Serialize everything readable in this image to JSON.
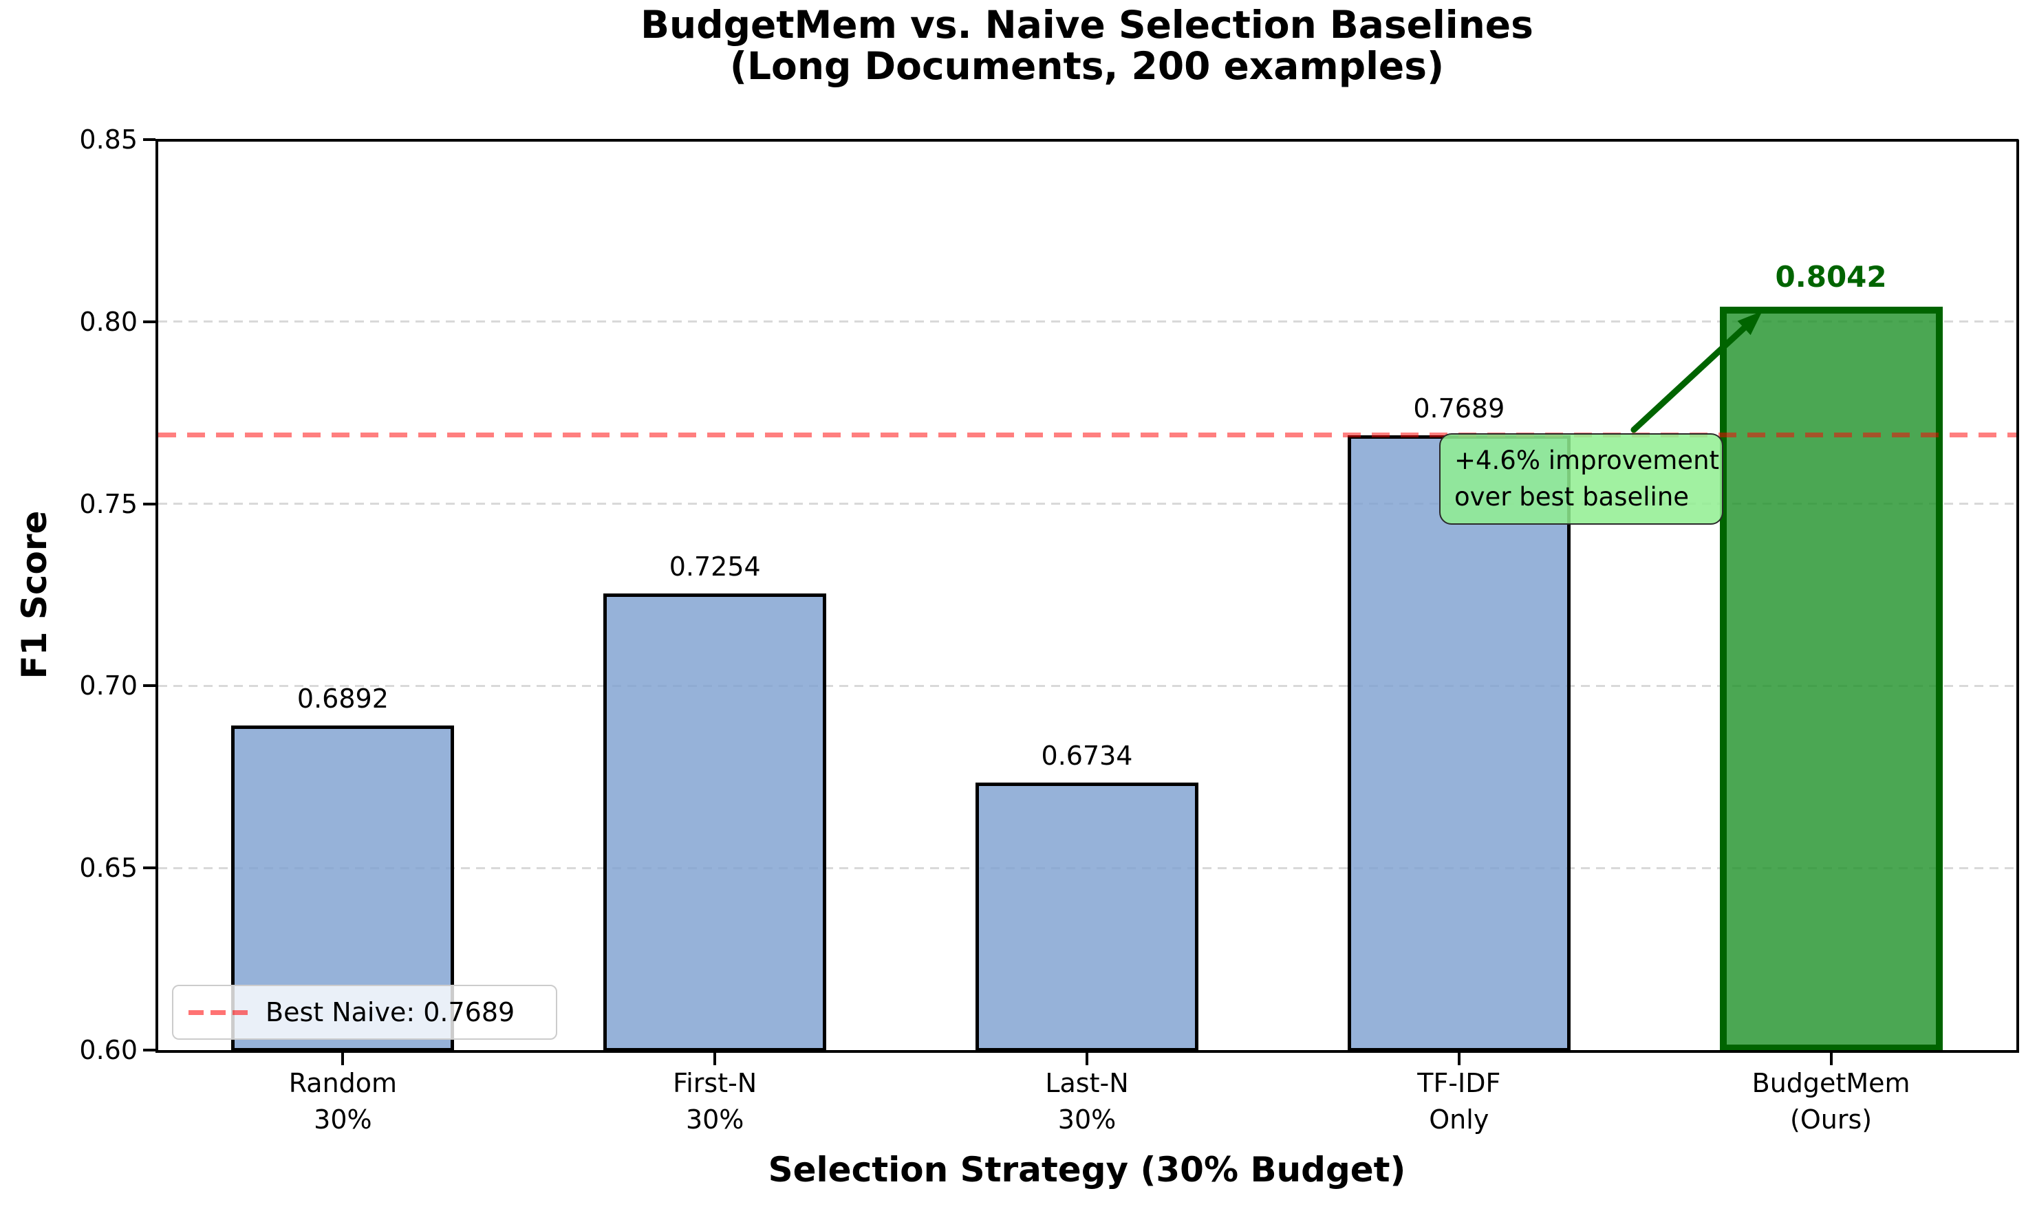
{
  "figure": {
    "title_line1": "BudgetMem vs. Naive Selection Baselines",
    "title_line2": "(Long Documents, 200 examples)"
  },
  "chart_data": {
    "type": "bar",
    "title": "BudgetMem vs. Naive Selection Baselines (Long Documents, 200 examples)",
    "xlabel": "Selection Strategy (30% Budget)",
    "ylabel": "F1 Score",
    "ylim": [
      0.6,
      0.85
    ],
    "yticks": [
      {
        "value": 0.6,
        "label": "0.60"
      },
      {
        "value": 0.65,
        "label": "0.65"
      },
      {
        "value": 0.7,
        "label": "0.70"
      },
      {
        "value": 0.75,
        "label": "0.75"
      },
      {
        "value": 0.8,
        "label": "0.80"
      },
      {
        "value": 0.85,
        "label": "0.85"
      }
    ],
    "grid": {
      "axis": "y",
      "style": "dashed",
      "color": "#d9d9d9"
    },
    "categories": [
      {
        "line1": "Random",
        "line2": "30%"
      },
      {
        "line1": "First-N",
        "line2": "30%"
      },
      {
        "line1": "Last-N",
        "line2": "30%"
      },
      {
        "line1": "TF-IDF",
        "line2": "Only"
      },
      {
        "line1": "BudgetMem",
        "line2": "(Ours)"
      }
    ],
    "values": [
      0.6892,
      0.7254,
      0.6734,
      0.7689,
      0.8042
    ],
    "value_labels": [
      "0.6892",
      "0.7254",
      "0.6734",
      "0.7689",
      "0.8042"
    ],
    "highlight_index": 4,
    "colors": {
      "bar_fill": "rgba(124,159,208,0.8)",
      "bar_edge": "#000000",
      "highlight_fill": "rgba(30,145,40,0.8)",
      "highlight_edge": "#006400",
      "highlight_label": "#006400",
      "reference_line": "rgba(255,0,0,0.5)",
      "grid": "#d9d9d9",
      "annotation_box": "rgba(144,238,144,0.85)",
      "annotation_arrow": "#006400"
    },
    "reference_line": {
      "value": 0.7689,
      "label": "Best Naive: 0.7689",
      "style": "dashed"
    },
    "legend": {
      "label": "Best Naive: 0.7689",
      "position": "lower left"
    },
    "annotation": {
      "text_line1": "+4.6% improvement",
      "text_line2": "over best baseline",
      "points_to_value": 0.8042
    }
  }
}
